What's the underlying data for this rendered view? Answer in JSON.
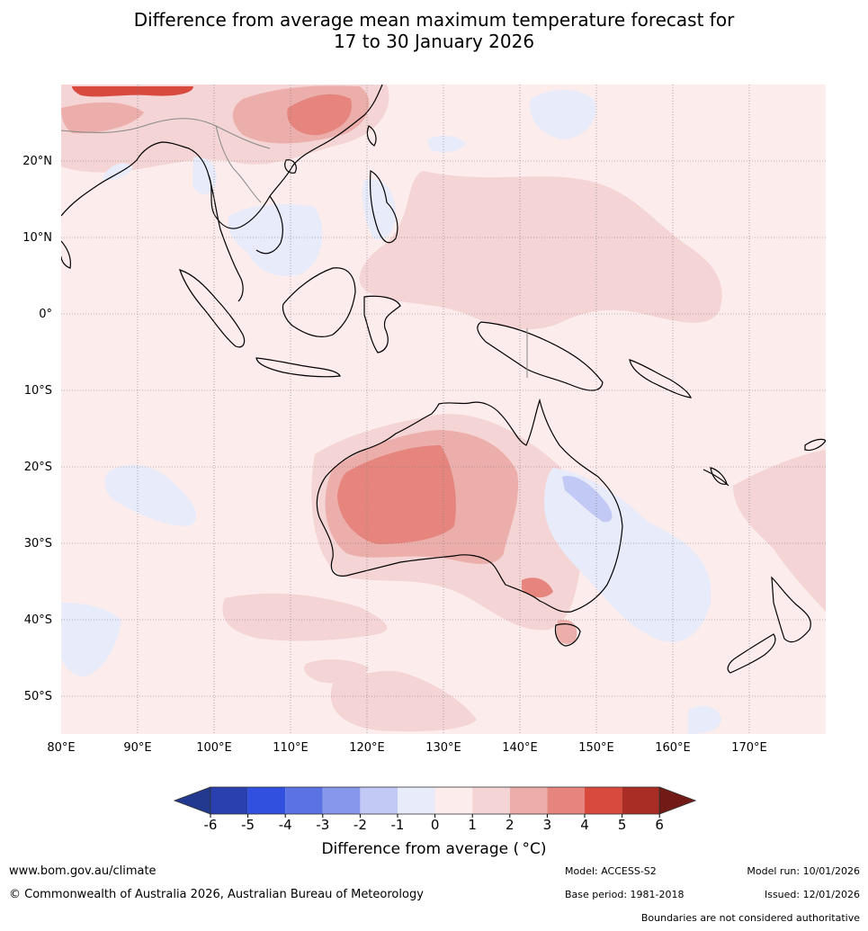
{
  "title": {
    "line1": "Difference from average mean maximum temperature forecast for",
    "line2": "17 to 30 January 2026"
  },
  "map": {
    "lat_labels": [
      "20°N",
      "10°N",
      "0°",
      "10°S",
      "20°S",
      "30°S",
      "40°S",
      "50°S"
    ],
    "lon_labels": [
      "80°E",
      "90°E",
      "100°E",
      "110°E",
      "120°E",
      "130°E",
      "140°E",
      "150°E",
      "160°E",
      "170°E"
    ],
    "extent": {
      "lon_min": 80,
      "lon_max": 180,
      "lat_min": -55,
      "lat_max": 30
    }
  },
  "colorbar": {
    "labels": [
      "-6",
      "-5",
      "-4",
      "-3",
      "-2",
      "-1",
      "0",
      "1",
      "2",
      "3",
      "4",
      "5",
      "6"
    ],
    "colors": [
      "#22398f",
      "#2a40ae",
      "#3250e0",
      "#5b72e4",
      "#8797ec",
      "#c2c9f4",
      "#e7ebfa",
      "#fcecec",
      "#f4d4d4",
      "#ecaeab",
      "#e5857d",
      "#d84a3e",
      "#a92d24",
      "#721b16"
    ],
    "title": "Difference from average ( °C)"
  },
  "footer": {
    "website": "www.bom.gov.au/climate",
    "copyright": "© Commonwealth of Australia 2026, Australian Bureau of Meteorology",
    "model": "Model: ACCESS-S2",
    "base_period": "Base period: 1981-2018",
    "model_run": "Model run: 10/01/2026",
    "issued": "Issued: 12/01/2026",
    "disclaimer": "Boundaries are not considered authoritative"
  }
}
